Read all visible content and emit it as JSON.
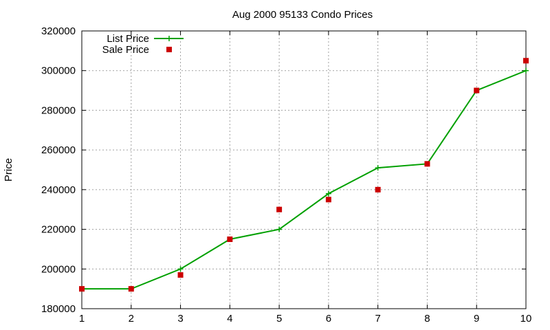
{
  "chart_data": {
    "type": "line",
    "title": "Aug 2000 95133 Condo Prices",
    "xlabel": "",
    "ylabel": "Price",
    "xlim": [
      1,
      10
    ],
    "ylim": [
      180000,
      320000
    ],
    "xticks": [
      1,
      2,
      3,
      4,
      5,
      6,
      7,
      8,
      9,
      10
    ],
    "yticks": [
      180000,
      200000,
      220000,
      240000,
      260000,
      280000,
      300000,
      320000
    ],
    "grid": true,
    "legend_position": "top-left",
    "series": [
      {
        "name": "List Price",
        "style": "line-with-plus-markers",
        "color": "#00a000",
        "x": [
          1,
          2,
          3,
          4,
          5,
          6,
          7,
          8,
          9,
          10
        ],
        "y": [
          190000,
          190000,
          200000,
          215000,
          220000,
          238000,
          251000,
          253000,
          290000,
          300000
        ]
      },
      {
        "name": "Sale Price",
        "style": "square-markers",
        "color": "#cc0000",
        "x": [
          1,
          2,
          3,
          4,
          5,
          6,
          7,
          8,
          9,
          10
        ],
        "y": [
          190000,
          190000,
          197000,
          215000,
          230000,
          235000,
          240000,
          253000,
          290000,
          305000
        ]
      }
    ]
  }
}
